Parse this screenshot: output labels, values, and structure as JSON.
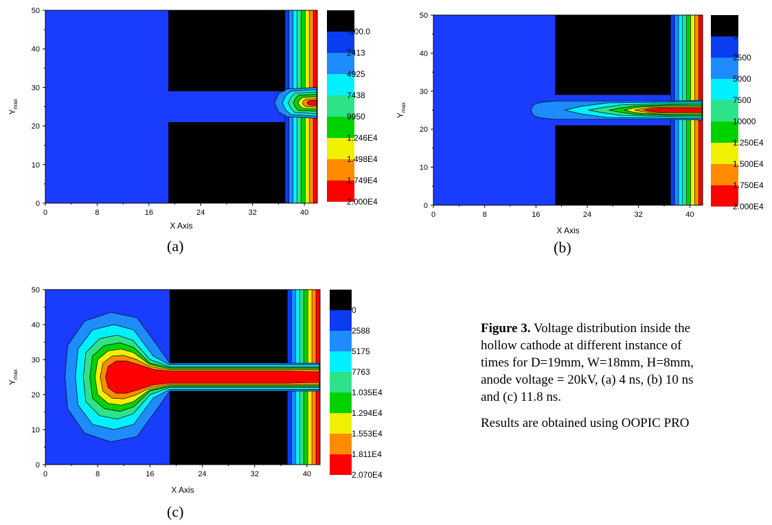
{
  "figure": {
    "caption_label": "Figure 3.",
    "caption_lines": [
      " Voltage distribution inside the",
      "hollow cathode at different instance of",
      "times for D=19mm, W=18mm, H=8mm,",
      "anode voltage = 20kV, (a) 4 ns, (b) 10 ns",
      "and (c) 11.8 ns."
    ],
    "note": "Results are obtained using OOPIC PRO"
  },
  "chart_data": [
    {
      "type": "contour",
      "panel_label": "(a)",
      "xlabel": "X Axis",
      "ylabel": "Ymax",
      "xlim": [
        0,
        42
      ],
      "ylim": [
        0,
        50
      ],
      "xticks": [
        "0",
        "8",
        "16",
        "24",
        "32",
        "40"
      ],
      "yticks": [
        "0",
        "10",
        "20",
        "30",
        "40",
        "50"
      ],
      "levels": [
        "-100.0",
        "2413",
        "4925",
        "7438",
        "9950",
        "1.246E4",
        "1.498E4",
        "1.749E4",
        "2.000E4"
      ],
      "level_colors": [
        "#000000",
        "#0a3cf0",
        "#1e8cff",
        "#00f0ff",
        "#2ee28a",
        "#00d200",
        "#f0f000",
        "#ff8c00",
        "#ff0000"
      ],
      "background_color": "#1a3cff",
      "cathode_blocks": [
        {
          "x": [
            19,
            37
          ],
          "y": [
            0,
            21
          ]
        },
        {
          "x": [
            19,
            37
          ],
          "y": [
            29,
            50
          ]
        }
      ]
    },
    {
      "type": "contour",
      "panel_label": "(b)",
      "xlabel": "X Axis",
      "ylabel": "Ymax",
      "xlim": [
        0,
        42
      ],
      "ylim": [
        0,
        50
      ],
      "xticks": [
        "0",
        "8",
        "16",
        "24",
        "32",
        "40"
      ],
      "yticks": [
        "0",
        "10",
        "20",
        "30",
        "40",
        "50"
      ],
      "levels": [
        "0",
        "2500",
        "5000",
        "7500",
        "10000",
        "1.250E4",
        "1.500E4",
        "1.750E4",
        "2.000E4"
      ],
      "level_colors": [
        "#000000",
        "#0a3cf0",
        "#1e8cff",
        "#00f0ff",
        "#2ee28a",
        "#00d200",
        "#f0f000",
        "#ff8c00",
        "#ff0000"
      ],
      "background_color": "#1a3cff",
      "cathode_blocks": [
        {
          "x": [
            19,
            37
          ],
          "y": [
            0,
            21
          ]
        },
        {
          "x": [
            19,
            37
          ],
          "y": [
            29,
            50
          ]
        }
      ]
    },
    {
      "type": "contour",
      "panel_label": "(c)",
      "xlabel": "X Axis",
      "ylabel": "Ymax",
      "xlim": [
        0,
        42
      ],
      "ylim": [
        0,
        50
      ],
      "xticks": [
        "0",
        "8",
        "16",
        "24",
        "32",
        "40"
      ],
      "yticks": [
        "0",
        "10",
        "20",
        "30",
        "40",
        "50"
      ],
      "levels": [
        "0",
        "2588",
        "5175",
        "7763",
        "1.035E4",
        "1.294E4",
        "1.553E4",
        "1.811E4",
        "2.070E4"
      ],
      "level_colors": [
        "#000000",
        "#0a3cf0",
        "#1e8cff",
        "#00f0ff",
        "#2ee28a",
        "#00d200",
        "#f0f000",
        "#ff8c00",
        "#ff0000"
      ],
      "background_color": "#1a3cff",
      "cathode_blocks": [
        {
          "x": [
            19,
            37
          ],
          "y": [
            0,
            21
          ]
        },
        {
          "x": [
            19,
            37
          ],
          "y": [
            29,
            50
          ]
        }
      ]
    }
  ]
}
